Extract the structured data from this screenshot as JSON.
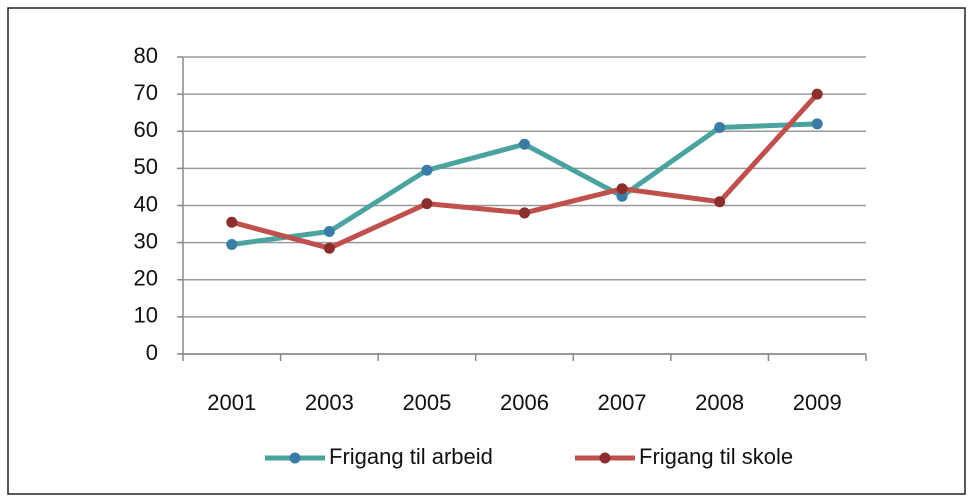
{
  "chart_data": {
    "type": "line",
    "categories": [
      "2001",
      "2003",
      "2005",
      "2006",
      "2007",
      "2008",
      "2009"
    ],
    "series": [
      {
        "name": "Frigang til arbeid",
        "color": "#4ba3a0",
        "marker_color": "#3a7ca5",
        "values": [
          29.5,
          33,
          49.5,
          56.5,
          42.5,
          61,
          62
        ]
      },
      {
        "name": "Frigang til skole",
        "color": "#c0504d",
        "marker_color": "#8c2f2c",
        "values": [
          35.5,
          28.5,
          40.5,
          38,
          44.5,
          41,
          70
        ]
      }
    ],
    "ylim": [
      0,
      80
    ],
    "yticks": [
      0,
      10,
      20,
      30,
      40,
      50,
      60,
      70,
      80
    ],
    "grid": true,
    "legend": "bottom"
  }
}
